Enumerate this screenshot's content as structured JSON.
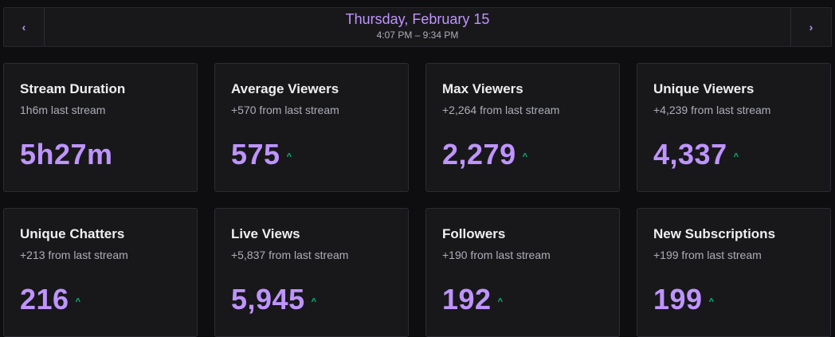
{
  "header": {
    "date": "Thursday, February 15",
    "time_range": "4:07 PM – 9:34 PM",
    "prev_icon": "‹",
    "next_icon": "›"
  },
  "cards": [
    {
      "title": "Stream Duration",
      "sub": "1h6m last stream",
      "value": "5h27m",
      "trend": ""
    },
    {
      "title": "Average Viewers",
      "sub": "+570 from last stream",
      "value": "575",
      "trend": "^"
    },
    {
      "title": "Max Viewers",
      "sub": "+2,264 from last stream",
      "value": "2,279",
      "trend": "^"
    },
    {
      "title": "Unique Viewers",
      "sub": "+4,239 from last stream",
      "value": "4,337",
      "trend": "^"
    },
    {
      "title": "Unique Chatters",
      "sub": "+213 from last stream",
      "value": "216",
      "trend": "^"
    },
    {
      "title": "Live Views",
      "sub": "+5,837 from last stream",
      "value": "5,945",
      "trend": "^"
    },
    {
      "title": "Followers",
      "sub": "+190 from last stream",
      "value": "192",
      "trend": "^"
    },
    {
      "title": "New Subscriptions",
      "sub": "+199 from last stream",
      "value": "199",
      "trend": "^"
    }
  ],
  "colors": {
    "accent": "#bf94ff",
    "trend_up": "#00c47a",
    "card_bg": "#18181b",
    "page_bg": "#0e0e10"
  }
}
